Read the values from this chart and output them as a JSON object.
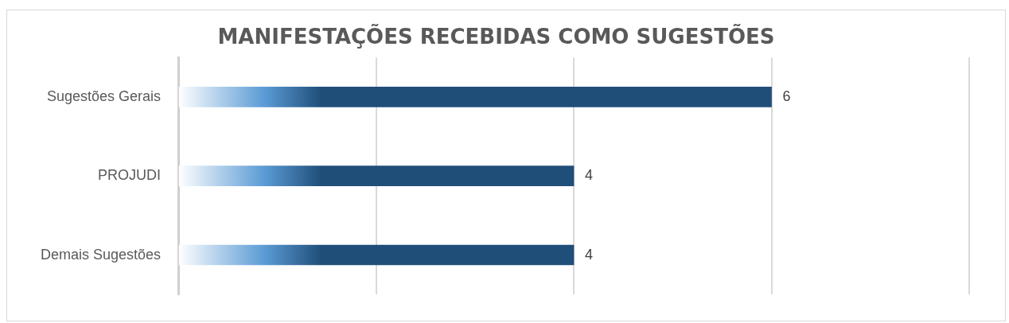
{
  "chart_data": {
    "type": "bar",
    "title": "MANIFESTAÇÕES RECEBIDAS COMO SUGESTÕES",
    "orientation": "horizontal",
    "categories": [
      "Sugestões Gerais",
      "PROJUDI",
      "Demais Sugestões"
    ],
    "values": [
      6,
      4,
      4
    ],
    "color": "#1f4e79",
    "xlim": [
      0,
      8
    ],
    "xticks": [
      {
        "value": 0,
        "label": null
      },
      {
        "value": 2,
        "label": null
      },
      {
        "value": 4,
        "label": null
      },
      {
        "value": 6,
        "label": null
      },
      {
        "value": 8,
        "label": null
      }
    ],
    "tick_labels": "y",
    "grid": "x",
    "data_labels": true
  }
}
